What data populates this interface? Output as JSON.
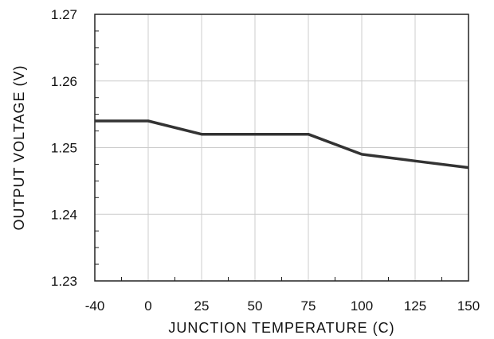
{
  "chart_data": {
    "type": "line",
    "title": "",
    "xlabel": "JUNCTION TEMPERATURE (C)",
    "ylabel": "OUTPUT VOLTAGE (V)",
    "x": [
      -40,
      0,
      25,
      75,
      100,
      125,
      150
    ],
    "x_ticks": [
      -40,
      0,
      25,
      50,
      75,
      100,
      125,
      150
    ],
    "x_tick_labels": [
      "-40",
      "0",
      "25",
      "50",
      "75",
      "100",
      "125",
      "150"
    ],
    "y_ticks": [
      1.23,
      1.24,
      1.25,
      1.26,
      1.27
    ],
    "y_tick_labels": [
      "1.23",
      "1.24",
      "1.25",
      "1.26",
      "1.27"
    ],
    "ylim": [
      1.23,
      1.27
    ],
    "grid": true,
    "series": [
      {
        "values": [
          1.254,
          1.254,
          1.252,
          1.252,
          1.249,
          1.248,
          1.247
        ]
      }
    ],
    "colors": {
      "line": "#333333",
      "grid": "#cccccc",
      "axis": "#222222"
    }
  }
}
